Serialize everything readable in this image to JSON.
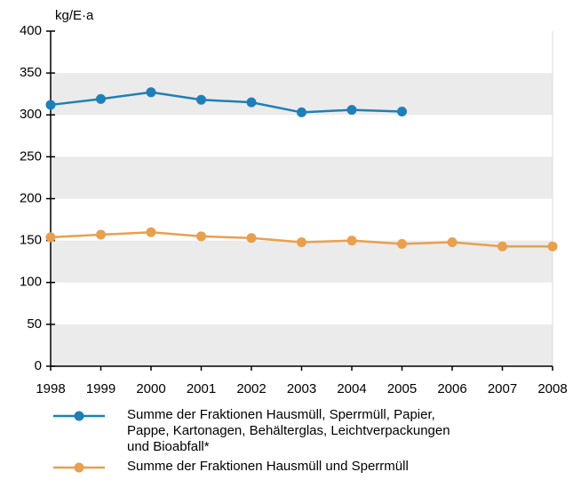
{
  "chart_data": {
    "type": "line",
    "y_label": "kg/E·a",
    "x": [
      1998,
      1999,
      2000,
      2001,
      2002,
      2003,
      2004,
      2005,
      2006,
      2007,
      2008
    ],
    "xlim": [
      1998,
      2008
    ],
    "xticks": [
      1998,
      1999,
      2000,
      2001,
      2002,
      2003,
      2004,
      2005,
      2006,
      2007,
      2008
    ],
    "ylim": [
      0,
      400
    ],
    "yticks": [
      0,
      50,
      100,
      150,
      200,
      250,
      300,
      350,
      400
    ],
    "grid_bands": true,
    "series": [
      {
        "name": "Summe der Fraktionen Hausmüll, Sperrmüll, Papier, Pappe, Kartonagen, Behälterglas, Leichtverpackungen und Bioabfall*",
        "color": "#1f7fb8",
        "values": [
          312,
          319,
          327,
          318,
          315,
          303,
          306,
          304,
          null,
          null,
          null
        ]
      },
      {
        "name": "Summe der Fraktionen Hausmüll und Sperrmüll",
        "color": "#e8a04f",
        "values": [
          154,
          157,
          160,
          155,
          153,
          148,
          150,
          146,
          148,
          143,
          143
        ]
      }
    ]
  }
}
